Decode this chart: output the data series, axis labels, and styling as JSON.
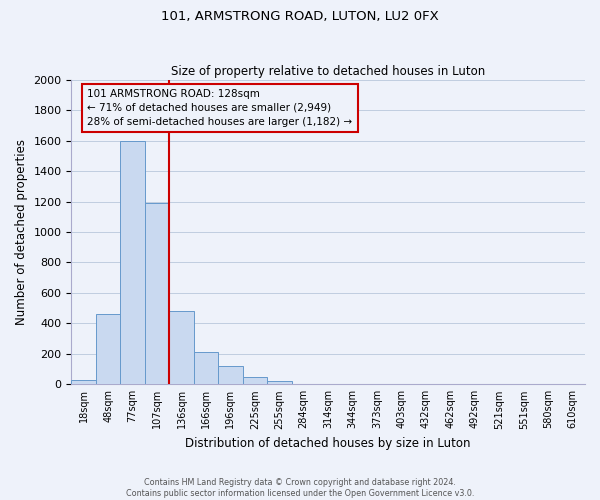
{
  "title1": "101, ARMSTRONG ROAD, LUTON, LU2 0FX",
  "title2": "Size of property relative to detached houses in Luton",
  "xlabel": "Distribution of detached houses by size in Luton",
  "ylabel": "Number of detached properties",
  "bin_labels": [
    "18sqm",
    "48sqm",
    "77sqm",
    "107sqm",
    "136sqm",
    "166sqm",
    "196sqm",
    "225sqm",
    "255sqm",
    "284sqm",
    "314sqm",
    "344sqm",
    "373sqm",
    "403sqm",
    "432sqm",
    "462sqm",
    "492sqm",
    "521sqm",
    "551sqm",
    "580sqm",
    "610sqm"
  ],
  "bar_heights": [
    30,
    460,
    1600,
    1190,
    480,
    210,
    120,
    50,
    20,
    0,
    0,
    0,
    0,
    0,
    0,
    0,
    0,
    0,
    0,
    0,
    0
  ],
  "bar_color": "#c9d9f0",
  "bar_edge_color": "#6699cc",
  "property_bin_index": 4,
  "vline_color": "#cc0000",
  "annotation_title": "101 ARMSTRONG ROAD: 128sqm",
  "annotation_line1": "← 71% of detached houses are smaller (2,949)",
  "annotation_line2": "28% of semi-detached houses are larger (1,182) →",
  "annotation_box_color": "#cc0000",
  "ylim": [
    0,
    2000
  ],
  "yticks": [
    0,
    200,
    400,
    600,
    800,
    1000,
    1200,
    1400,
    1600,
    1800,
    2000
  ],
  "footer1": "Contains HM Land Registry data © Crown copyright and database right 2024.",
  "footer2": "Contains public sector information licensed under the Open Government Licence v3.0.",
  "background_color": "#eef2fa",
  "grid_color": "#c0cde0",
  "n_bins": 21
}
